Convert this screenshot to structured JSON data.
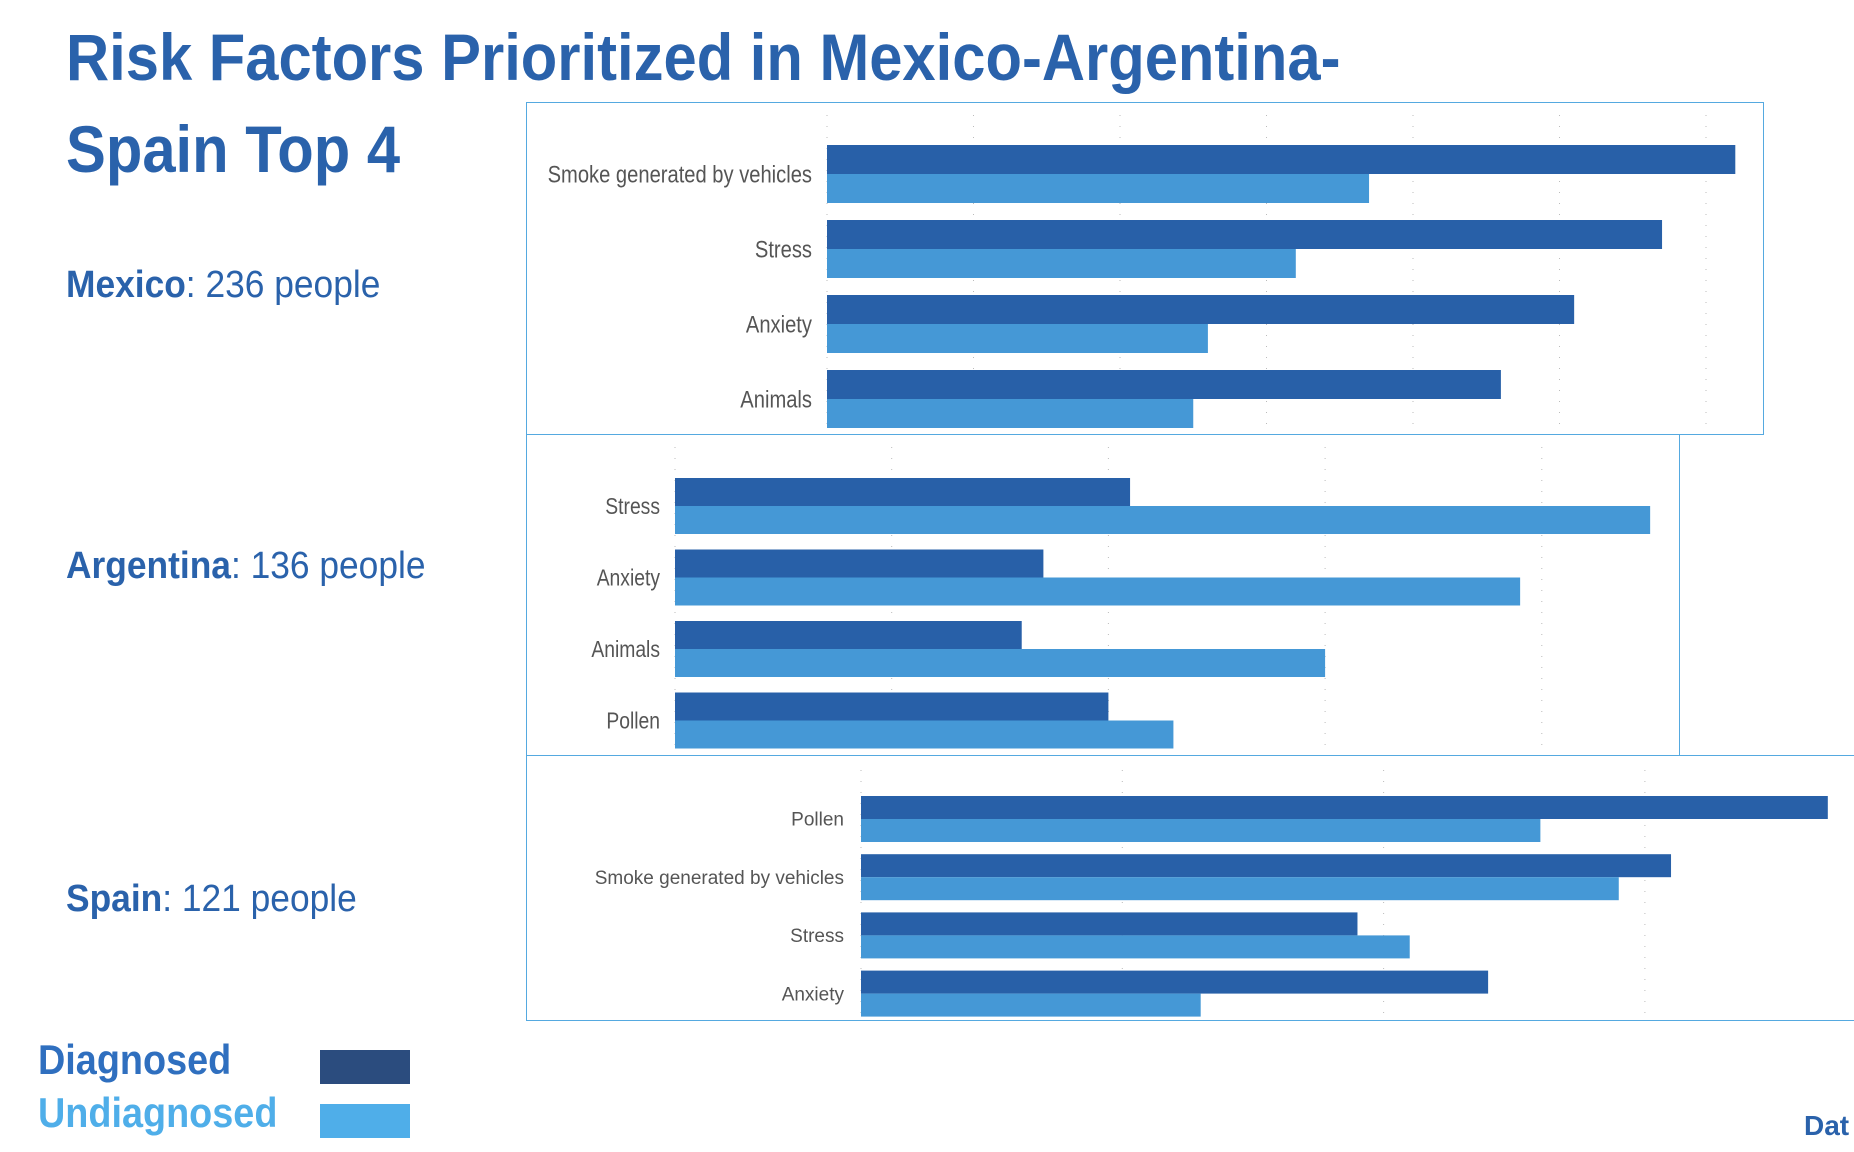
{
  "title": {
    "line1": "Risk Factors Prioritized in Mexico-Argentina-",
    "line2": "Spain Top 4"
  },
  "countries": [
    {
      "name": "Mexico",
      "count_text": ": 236 people"
    },
    {
      "name": "Argentina",
      "count_text": ": 136 people"
    },
    {
      "name": "Spain",
      "count_text": ": 121 people"
    }
  ],
  "legend": {
    "diagnosed": "Diagnosed",
    "undiagnosed": "Undiagnosed"
  },
  "footer": {
    "text": "Dat"
  },
  "colors": {
    "title": "#2a62ab",
    "diagnosed_bar": "#2860a8",
    "undiagnosed_bar": "#4598d6",
    "diagnosed_legend_text": "#2f6fbf",
    "diagnosed_swatch": "#2b4c7e",
    "undiagnosed_legend": "#4faee9",
    "box_border": "#55a9e0",
    "label_text": "#555555",
    "gridline": "#bbbbbb"
  },
  "chart_data": [
    {
      "type": "bar",
      "orientation": "horizontal",
      "title": "Mexico",
      "categories": [
        "Smoke generated by vehicles",
        "Stress",
        "Anxiety",
        "Animals"
      ],
      "series": [
        {
          "name": "Diagnosed",
          "values": [
            6.2,
            5.7,
            5.1,
            4.6
          ]
        },
        {
          "name": "Undiagnosed",
          "values": [
            3.7,
            3.2,
            2.6,
            2.5
          ]
        }
      ],
      "xlim": [
        0,
        6.5
      ],
      "grid": true,
      "gridlines": [
        0,
        1,
        2,
        3,
        4,
        5,
        6
      ],
      "xlabel": "",
      "ylabel": ""
    },
    {
      "type": "bar",
      "orientation": "horizontal",
      "title": "Argentina",
      "categories": [
        "Stress",
        "Anxiety",
        "Animals",
        "Pollen"
      ],
      "series": [
        {
          "name": "Diagnosed",
          "values": [
            2.1,
            1.7,
            1.6,
            2.0
          ]
        },
        {
          "name": "Undiagnosed",
          "values": [
            4.5,
            3.9,
            3.0,
            2.3
          ]
        }
      ],
      "xlim": [
        0,
        4.7
      ],
      "grid": true,
      "gridlines": [
        0,
        1,
        2,
        3,
        4
      ],
      "xlabel": "",
      "ylabel": ""
    },
    {
      "type": "bar",
      "orientation": "horizontal",
      "title": "Spain",
      "categories": [
        "Pollen",
        "Smoke generated by vehicles",
        "Stress",
        "Anxiety"
      ],
      "series": [
        {
          "name": "Diagnosed",
          "values": [
            3.7,
            3.1,
            1.9,
            2.4
          ]
        },
        {
          "name": "Undiagnosed",
          "values": [
            2.6,
            2.9,
            2.1,
            1.3
          ]
        }
      ],
      "xlim": [
        0,
        3.8
      ],
      "grid": true,
      "gridlines": [
        0,
        1,
        2,
        3
      ],
      "xlabel": "",
      "ylabel": ""
    }
  ]
}
